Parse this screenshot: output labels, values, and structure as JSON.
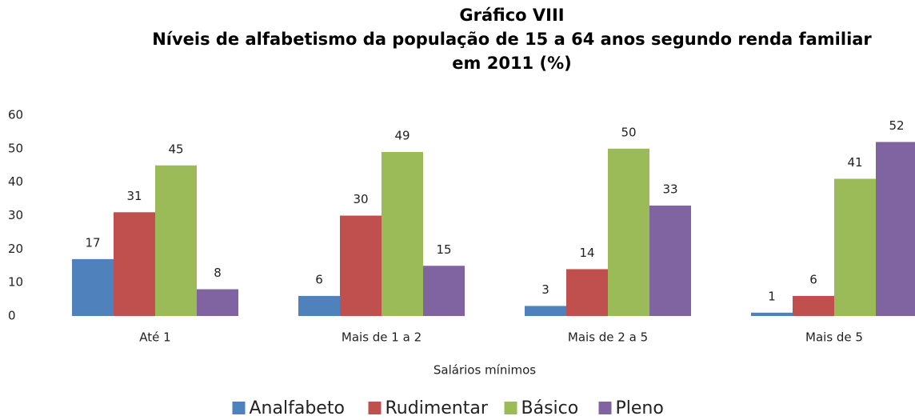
{
  "chart_data": {
    "type": "bar",
    "title": "Gráfico VIII",
    "subtitle": "Níveis de alfabetismo da população de 15 a 64 anos segundo renda familiar em 2011 (%)",
    "xlabel": "Salários mínimos",
    "categories": [
      "Até 1",
      "Mais de 1 a 2",
      "Mais de 2 a 5",
      "Mais de 5"
    ],
    "series": [
      {
        "name": "Analfabeto",
        "color": "#4f81bd",
        "values": [
          17,
          6,
          3,
          1
        ]
      },
      {
        "name": "Rudimentar",
        "color": "#c0504d",
        "values": [
          31,
          30,
          14,
          6
        ]
      },
      {
        "name": "Básico",
        "color": "#9bbb59",
        "values": [
          45,
          49,
          50,
          41
        ]
      },
      {
        "name": "Pleno",
        "color": "#8064a2",
        "values": [
          8,
          15,
          33,
          52
        ]
      }
    ],
    "ylim": [
      0,
      60
    ],
    "yticks": [
      0,
      10,
      20,
      30,
      40,
      50,
      60
    ],
    "grid": false,
    "legend": "bottom"
  }
}
